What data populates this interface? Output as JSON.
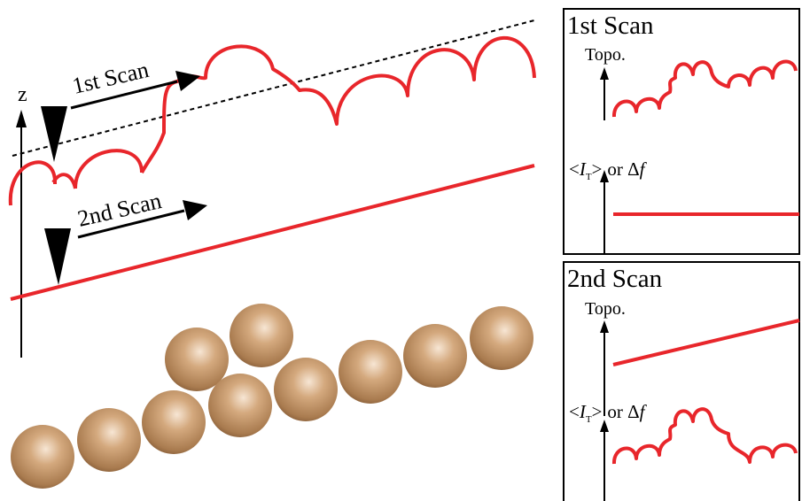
{
  "main": {
    "z_label": "z",
    "first_scan_label": "1st Scan",
    "second_scan_label": "2nd Scan"
  },
  "panel1": {
    "title": "1st Scan",
    "topo_label": "Topo.",
    "signal_prefix": "<",
    "signal_var": "I",
    "signal_sub": "T",
    "signal_suffix": ">",
    "signal_or": "or Δ",
    "signal_f": "f"
  },
  "panel2": {
    "title": "2nd Scan",
    "topo_label": "Topo.",
    "signal_prefix": "<",
    "signal_var": "I",
    "signal_sub": "T",
    "signal_suffix": ">",
    "signal_or": "or Δ",
    "signal_f": "f"
  },
  "colors": {
    "trace": "#e8262b",
    "atom_light": "#f2dcc8",
    "atom_mid": "#c79a6e",
    "atom_dark": "#7a5230"
  }
}
